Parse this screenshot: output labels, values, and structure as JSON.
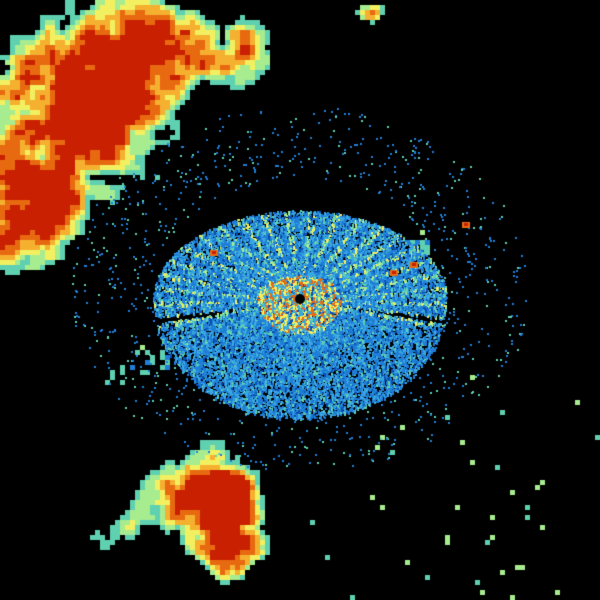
{
  "background_color": "#000000",
  "palette": [
    "#0a4fb0",
    "#1f7fd8",
    "#3aa8e0",
    "#5fd0b0",
    "#a8ec90",
    "#f2f060",
    "#f5b030",
    "#e86a10",
    "#c82000"
  ],
  "site_marker_color": "#000000"
}
